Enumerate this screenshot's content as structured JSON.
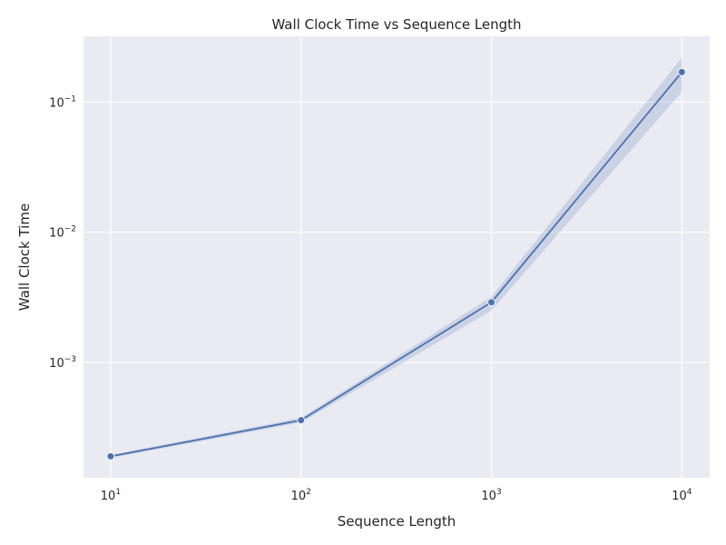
{
  "chart_data": {
    "type": "line",
    "title": "Wall Clock Time vs Sequence Length",
    "xlabel": "Sequence Length",
    "ylabel": "Wall Clock Time",
    "xscale": "log",
    "yscale": "log",
    "xlim": [
      7.2,
      14000
    ],
    "ylim": [
      0.00013,
      0.32
    ],
    "grid": true,
    "legend": "none",
    "x_ticks": [
      {
        "value": 10,
        "base": "10",
        "exp": "1"
      },
      {
        "value": 100,
        "base": "10",
        "exp": "2"
      },
      {
        "value": 1000,
        "base": "10",
        "exp": "3"
      },
      {
        "value": 10000,
        "base": "10",
        "exp": "4"
      }
    ],
    "y_ticks": [
      {
        "value": 0.001,
        "base": "10",
        "exp": "−3"
      },
      {
        "value": 0.01,
        "base": "10",
        "exp": "−2"
      },
      {
        "value": 0.1,
        "base": "10",
        "exp": "−1"
      }
    ],
    "series": [
      {
        "x": [
          10,
          100,
          1000,
          10000
        ],
        "y": [
          0.00019,
          0.00036,
          0.0029,
          0.17
        ],
        "ci_low": [
          0.000185,
          0.000345,
          0.0025,
          0.12
        ],
        "ci_high": [
          0.000195,
          0.000375,
          0.0032,
          0.22
        ],
        "color": "#4c72b0",
        "band_color": "#4c72b0"
      }
    ],
    "background_color": "#eaeaf2",
    "grid_color": "#ffffff"
  }
}
